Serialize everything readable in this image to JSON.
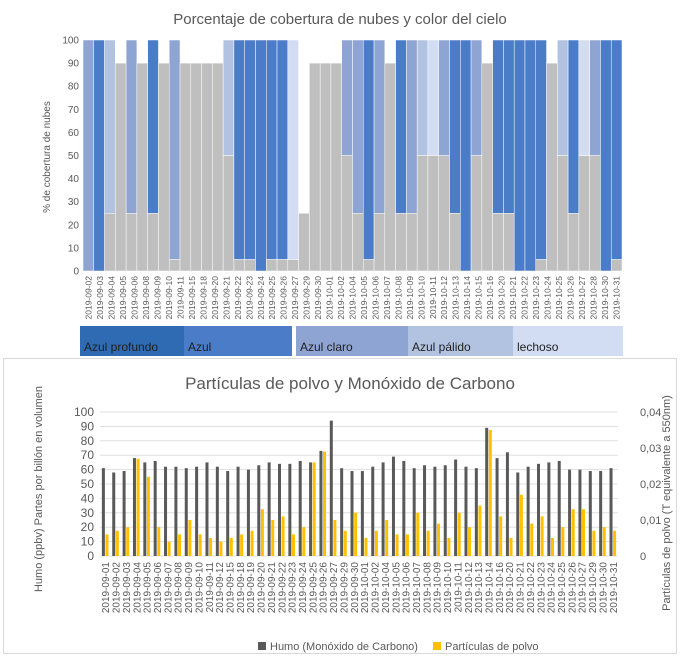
{
  "chart_data": [
    {
      "type": "bar",
      "title": "Porcentaje de cobertura de nubes y color del cielo",
      "ylabel": "% de cobertura de nubes",
      "ylim": [
        0,
        100
      ],
      "yticks": [
        0,
        10,
        20,
        30,
        40,
        50,
        60,
        70,
        80,
        90,
        100
      ],
      "categories": [
        "2019-09-02",
        "2019-09-03",
        "2019-09-04",
        "2019-09-05",
        "2019-09-06",
        "2019-09-08",
        "2019-09-09",
        "2019-09-10",
        "2019-09-11",
        "2019-09-14",
        "2019-09-15",
        "2019-09-16",
        "2019-09-18",
        "2019-09-19",
        "2019-09-20",
        "2019-09-21",
        "2019-09-22",
        "2019-09-23",
        "2019-09-24",
        "2019-09-25",
        "2019-09-26",
        "2019-09-27",
        "2019-09-29",
        "2019-09-30",
        "2019-10-01",
        "2019-10-02",
        "2019-10-04",
        "2019-10-05",
        "2019-10-06",
        "2019-10-07",
        "2019-10-08",
        "2019-10-09",
        "2019-10-10",
        "2019-10-11",
        "2019-10-12",
        "2019-10-13",
        "2019-10-14",
        "2019-10-15",
        "2019-10-16",
        "2019-10-20",
        "2019-10-21",
        "2019-10-22",
        "2019-10-23",
        "2019-10-24",
        "2019-10-25",
        "2019-10-26",
        "2019-10-27",
        "2019-10-28",
        "2019-10-30",
        "2019-10-31"
      ],
      "xticks_shown": [
        "2019-09-02",
        "2019-09-03",
        "2019-09-04",
        "2019-09-05",
        "2019-09-06",
        "2019-09-08",
        "2019-09-09",
        "2019-09-10",
        "2019-09-11",
        "2019-09-15",
        "2019-09-18",
        "2019-09-20",
        "2019-09-21",
        "2019-09-22",
        "2019-09-23",
        "2019-09-24",
        "2019-09-25",
        "2019-09-26",
        "2019-09-27",
        "2019-09-29",
        "2019-09-30",
        "2019-10-01",
        "2019-10-02",
        "2019-10-04",
        "2019-10-05",
        "2019-10-06",
        "2019-10-07",
        "2019-10-08",
        "2019-10-09",
        "2019-10-10",
        "2019-10-11",
        "2019-10-12",
        "2019-10-13",
        "2019-10-14",
        "2019-10-15",
        "2019-10-16",
        "2019-10-20",
        "2019-10-21",
        "2019-10-22",
        "2019-10-23",
        "2019-10-24",
        "2019-10-25",
        "2019-10-26",
        "2019-10-27",
        "2019-10-28",
        "2019-10-30",
        "2019-10-31"
      ],
      "cloud_cover": [
        0,
        0,
        25,
        90,
        25,
        90,
        25,
        90,
        5,
        90,
        90,
        90,
        90,
        50,
        5,
        5,
        0,
        5,
        5,
        5,
        25,
        90,
        90,
        90,
        50,
        25,
        5,
        25,
        90,
        25,
        25,
        50,
        50,
        50,
        25,
        0,
        50,
        90,
        25,
        25,
        0,
        0,
        5,
        90,
        50,
        25,
        50,
        50,
        0,
        5
      ],
      "sky_color": [
        "Azul claro",
        "Azul",
        "Azul pálido",
        "",
        "Azul claro",
        "",
        "Azul",
        "",
        "Azul claro",
        "",
        "",
        "",
        "",
        "Azul pálido",
        "Azul",
        "Azul",
        "Azul",
        "Azul",
        "Azul",
        "lechoso",
        "",
        "",
        "",
        "",
        "Azul claro",
        "Azul claro",
        "Azul",
        "Azul claro",
        "",
        "Azul",
        "Azul claro",
        "Azul pálido",
        "lechoso",
        "Azul claro",
        "Azul",
        "Azul",
        "Azul claro",
        "",
        "Azul",
        "Azul",
        "Azul",
        "Azul",
        "Azul",
        "",
        "Azul pálido",
        "Azul",
        "lechoso",
        "Azul claro",
        "Azul",
        "Azul"
      ],
      "legend": [
        {
          "label": "Azul profundo",
          "color": "#2e6bb3"
        },
        {
          "label": "Azul",
          "color": "#4a7cc8"
        },
        {
          "label": "Azul claro",
          "color": "#8ea4d2"
        },
        {
          "label": "Azul pálido",
          "color": "#b2c3e2"
        },
        {
          "label": "lechoso",
          "color": "#d2dcf3"
        }
      ],
      "gray_color": "#bfbfbf"
    },
    {
      "type": "bar",
      "title": "Partículas de polvo y Monóxido de Carbono",
      "ylabel": "Humo (ppbv) Partes por billón en volumen",
      "y2label": "Partículas de polvo (T equivalente a 550nm)",
      "ylim": [
        0,
        100
      ],
      "yticks": [
        0,
        10,
        20,
        30,
        40,
        50,
        60,
        70,
        80,
        90,
        100
      ],
      "y2lim": [
        0,
        0.04
      ],
      "y2ticks": [
        "0",
        "0,01",
        "0,02",
        "0,03",
        "0,04"
      ],
      "grid": true,
      "legend_position": "bottom",
      "categories": [
        "2019-09-01",
        "2019-09-02",
        "2019-09-03",
        "2019-09-04",
        "2019-09-05",
        "2019-09-06",
        "2019-09-07",
        "2019-09-08",
        "2019-09-09",
        "2019-09-10",
        "2019-09-11",
        "2019-09-12",
        "2019-09-15",
        "2019-09-18",
        "2019-09-19",
        "2019-09-20",
        "2019-09-21",
        "2019-09-22",
        "2019-09-23",
        "2019-09-24",
        "2019-09-25",
        "2019-09-26",
        "2019-09-27",
        "2019-09-29",
        "2019-09-30",
        "2019-10-01",
        "2019-10-02",
        "2019-10-04",
        "2019-10-05",
        "2019-10-06",
        "2019-10-07",
        "2019-10-08",
        "2019-10-09",
        "2019-10-10",
        "2019-10-11",
        "2019-10-12",
        "2019-10-13",
        "2019-10-14",
        "2019-10-16",
        "2019-10-20",
        "2019-10-21",
        "2019-10-22",
        "2019-10-23",
        "2019-10-24",
        "2019-10-25",
        "2019-10-26",
        "2019-10-27",
        "2019-10-29",
        "2019-10-30",
        "2019-10-31"
      ],
      "series": [
        {
          "name": "Humo (Monóxido de Carbono)",
          "color": "#595959",
          "values": [
            61,
            58,
            59,
            68,
            65,
            66,
            62,
            62,
            61,
            62,
            65,
            62,
            59,
            62,
            60,
            63,
            65,
            64,
            64,
            66,
            65,
            73,
            94,
            61,
            59,
            59,
            62,
            65,
            69,
            66,
            61,
            63,
            62,
            63,
            67,
            62,
            61,
            89,
            68,
            72,
            58,
            62,
            64,
            65,
            66,
            60,
            60,
            59,
            59,
            61
          ]
        },
        {
          "name": "Partículas de polvo",
          "color": "#ffc000",
          "axis": "secondary",
          "values": [
            0.006,
            0.007,
            0.008,
            0.027,
            0.022,
            0.008,
            0.004,
            0.006,
            0.01,
            0.006,
            0.005,
            0.004,
            0.005,
            0.006,
            0.007,
            0.013,
            0.01,
            0.011,
            0.006,
            0.008,
            0.026,
            0.029,
            0.01,
            0.007,
            0.012,
            0.005,
            0.007,
            0.01,
            0.006,
            0.006,
            0.012,
            0.007,
            0.009,
            0.005,
            0.012,
            0.008,
            0.014,
            0.035,
            0.011,
            0.005,
            0.017,
            0.009,
            0.011,
            0.005,
            0.008,
            0.013,
            0.013,
            0.007,
            0.008,
            0.007
          ]
        }
      ]
    }
  ]
}
